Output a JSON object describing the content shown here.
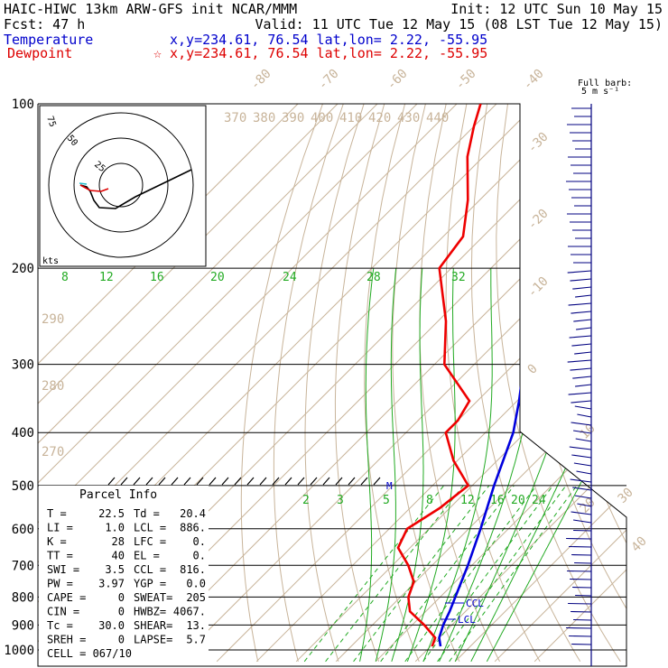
{
  "header": {
    "line1_left": "HAIC-HIWC 13km ARW-GFS init   NCAR/MMM",
    "line1_right": "Init: 12 UTC Sun 10 May 15",
    "line2_left": "Fcst:   47 h",
    "line2_right": "Valid: 11 UTC Tue 12 May 15 (08 LST Tue 12 May 15)",
    "temp_label": "Temperature",
    "temp_loc": "x,y=234.61, 76.54   lat,lon=  2.22, -55.95",
    "dew_label": "Dewpoint",
    "dew_loc": "☆ x,y=234.61, 76.54   lat,lon=  2.22, -55.95"
  },
  "legend_barb": {
    "line1": "Full barb:",
    "line2": "5 m s⁻¹"
  },
  "hodograph": {
    "units": "kts",
    "ring_labels": [
      "75",
      "50",
      "25"
    ]
  },
  "parcel_info": {
    "title": "Parcel Info",
    "rows": [
      {
        "l": "T   =",
        "lv": "22.5",
        "r": "Td  =",
        "rv": "20.4"
      },
      {
        "l": "LI  =",
        "lv": "1.0",
        "r": "LCL =",
        "rv": "886."
      },
      {
        "l": "K   =",
        "lv": "28",
        "r": "LFC =",
        "rv": "0."
      },
      {
        "l": "TT  =",
        "lv": "40",
        "r": "EL  =",
        "rv": "0."
      },
      {
        "l": "SWI =",
        "lv": "3.5",
        "r": "CCL =",
        "rv": "816."
      },
      {
        "l": "PW  =",
        "lv": "3.97",
        "r": "YGP =",
        "rv": "0.0"
      },
      {
        "l": "CAPE =",
        "lv": "0",
        "r": "SWEAT=",
        "rv": "205"
      },
      {
        "l": "CIN =",
        "lv": "0",
        "r": "HWBZ=",
        "rv": "4067."
      },
      {
        "l": "Tc  =",
        "lv": "30.0",
        "r": "SHEAR=",
        "rv": "13."
      },
      {
        "l": "SREH =",
        "lv": "0",
        "r": "LAPSE=",
        "rv": "5.7"
      }
    ],
    "cell": "CELL = 067/10"
  },
  "markers": {
    "ccl": "CCL",
    "lcl": "LCL",
    "m": "M"
  },
  "colors": {
    "temperature": "#0000dd",
    "dewpoint": "#ee0000",
    "dry_adiabat": "#c8b49a",
    "moist_adiabat": "#22aa22",
    "barbs": "#000080"
  },
  "chart_data": {
    "type": "line",
    "title": "Skew-T log-P sounding",
    "xlabel": "",
    "ylabel": "",
    "pressure_ticks_hpa": [
      100,
      200,
      300,
      400,
      500,
      600,
      700,
      800,
      900,
      1000
    ],
    "skew_temperature_labels_c": [
      -80,
      -70,
      -60,
      -50,
      -40,
      -30,
      -20,
      -10,
      0,
      10,
      20,
      30,
      40
    ],
    "potential_temperature_labels_k": [
      270,
      280,
      290,
      370,
      380,
      390,
      400,
      410,
      420,
      430,
      440
    ],
    "upper_green_labels": [
      8,
      12,
      16,
      20,
      24,
      28,
      32
    ],
    "lower_green_labels": [
      2,
      3,
      5,
      8,
      12,
      16,
      20,
      24
    ],
    "series": [
      {
        "name": "Temperature",
        "color": "#0000dd",
        "p": [
          985,
          950,
          900,
          850,
          800,
          700,
          600,
          500,
          450,
          400,
          350,
          300,
          250,
          200,
          175,
          150,
          125,
          110,
          100
        ],
        "t": [
          22.5,
          20.0,
          17.8,
          16.0,
          13.8,
          9.0,
          3.0,
          -4.5,
          -8.5,
          -13.0,
          -19.5,
          -27.5,
          -37.0,
          -48.5,
          -55.0,
          -62.5,
          -72.0,
          -78.5,
          -80.5
        ]
      },
      {
        "name": "Dewpoint",
        "color": "#ee0000",
        "p": [
          985,
          950,
          900,
          850,
          800,
          750,
          700,
          650,
          600,
          550,
          500,
          450,
          400,
          380,
          350,
          300,
          250,
          200,
          175,
          150,
          125,
          110,
          100
        ],
        "t": [
          20.4,
          19.0,
          13.0,
          6.0,
          2.0,
          -0.5,
          -6.0,
          -13.0,
          -15.5,
          -12.5,
          -11.0,
          -21.0,
          -30.0,
          -30.0,
          -32.0,
          -47.5,
          -58.0,
          -73.0,
          -75.0,
          -83.0,
          -94.0,
          -100.0,
          -104.0
        ]
      }
    ]
  }
}
